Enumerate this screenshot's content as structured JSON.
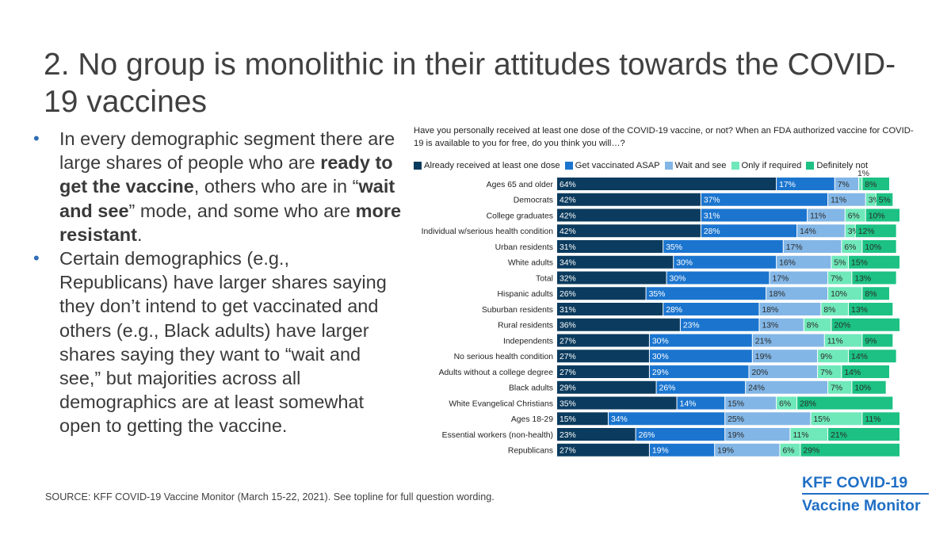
{
  "slide": {
    "title": "2. No group is monolithic in their attitudes towards the COVID-19 vaccines",
    "bullets": [
      {
        "parts": [
          {
            "text": "In every demographic segment there are large shares of people who are ",
            "bold": false
          },
          {
            "text": "ready to get the vaccine",
            "bold": true
          },
          {
            "text": ", others who are in “",
            "bold": false
          },
          {
            "text": "wait and see",
            "bold": true
          },
          {
            "text": "” mode, and some who are ",
            "bold": false
          },
          {
            "text": "more resistant",
            "bold": true
          },
          {
            "text": ".",
            "bold": false
          }
        ]
      },
      {
        "parts": [
          {
            "text": "Certain demographics (e.g., Republicans) have larger shares saying they don’t intend to get vaccinated and others (e.g., Black adults) have larger shares saying they want to “wait and see,” but majorities across all demographics are at least somewhat open to getting the vaccine.",
            "bold": false
          }
        ]
      }
    ],
    "source": "SOURCE: KFF COVID-19 Vaccine Monitor (March 15-22, 2021). See topline for full question wording.",
    "logo": {
      "line1": "KFF COVID-19",
      "line2": "Vaccine Monitor"
    }
  },
  "chart_data": {
    "type": "bar",
    "orientation": "horizontal",
    "stacked": true,
    "question": "Have you personally received at least one dose of the COVID-19 vaccine, or not? When an FDA authorized vaccine for COVID-19 is available to you for free, do you think you will…?",
    "legend_placement": "top",
    "categories": [
      "Ages 65 and older",
      "Democrats",
      "College graduates",
      "Individual w/serious health condition",
      "Urban residents",
      "White adults",
      "Total",
      "Hispanic adults",
      "Suburban residents",
      "Rural residents",
      "Independents",
      "No serious health condition",
      "Adults without a college degree",
      "Black adults",
      "White Evangelical Christians",
      "Ages 18-29",
      "Essential workers (non-health)",
      "Republicans"
    ],
    "series": [
      {
        "name": "Already received at least one dose",
        "color": "#0b3b5e",
        "values": [
          64,
          42,
          42,
          42,
          31,
          34,
          32,
          26,
          31,
          36,
          27,
          27,
          27,
          29,
          35,
          15,
          23,
          27
        ]
      },
      {
        "name": "Get vaccinated ASAP",
        "color": "#1b75cf",
        "values": [
          17,
          37,
          31,
          28,
          35,
          30,
          30,
          35,
          28,
          23,
          30,
          30,
          29,
          26,
          14,
          34,
          26,
          19
        ]
      },
      {
        "name": "Wait and see",
        "color": "#82b6e6",
        "values": [
          7,
          11,
          11,
          14,
          17,
          16,
          17,
          18,
          18,
          13,
          21,
          19,
          20,
          24,
          15,
          25,
          19,
          19
        ]
      },
      {
        "name": "Only if required",
        "color": "#6fe8ba",
        "values": [
          1,
          3,
          6,
          3,
          6,
          5,
          7,
          10,
          8,
          8,
          11,
          9,
          7,
          7,
          6,
          15,
          11,
          6
        ]
      },
      {
        "name": "Definitely not",
        "color": "#1cc183",
        "values": [
          8,
          5,
          10,
          12,
          10,
          15,
          13,
          8,
          13,
          20,
          9,
          14,
          14,
          10,
          28,
          11,
          21,
          29
        ]
      }
    ],
    "value_labels_above": [
      {
        "category": "Ages 65 and older",
        "series": "Only if required",
        "text": "1%"
      }
    ],
    "xlim": [
      0,
      100
    ]
  }
}
